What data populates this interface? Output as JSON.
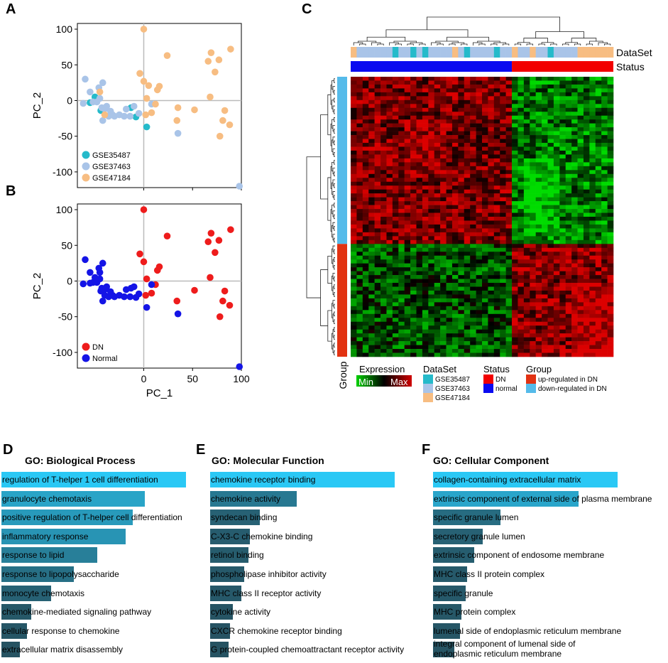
{
  "panels": {
    "A": "A",
    "B": "B",
    "C": "C",
    "D": "D",
    "E": "E",
    "F": "F"
  },
  "chart_data": [
    {
      "id": "A",
      "type": "scatter",
      "xlabel": "",
      "ylabel": "PC_2",
      "xlim": [
        -68,
        100
      ],
      "ylim": [
        -122,
        108
      ],
      "xticks": [
        0,
        50,
        100
      ],
      "yticks": [
        -100,
        -50,
        0,
        50,
        100
      ],
      "xticklabels": [
        "",
        "",
        ""
      ],
      "yticklabels": [
        "-100",
        "-50",
        "0",
        "50",
        "100"
      ],
      "legend": "bottom-left",
      "series": [
        {
          "name": "GSE35487",
          "color": "#25BACA",
          "points": [
            [
              -55,
              -3
            ],
            [
              -50,
              5
            ],
            [
              -44,
              -14
            ],
            [
              -13,
              -10
            ],
            [
              -8,
              -23
            ],
            [
              3,
              -37
            ]
          ]
        },
        {
          "name": "GSE37463",
          "color": "#A9C4E8",
          "points": [
            [
              -62,
              -4
            ],
            [
              -60,
              30
            ],
            [
              -55,
              12
            ],
            [
              -52,
              -2
            ],
            [
              -48,
              -2
            ],
            [
              -46,
              18
            ],
            [
              -45,
              3
            ],
            [
              -43,
              -10
            ],
            [
              -42,
              -28
            ],
            [
              -42,
              25
            ],
            [
              -40,
              -12
            ],
            [
              -38,
              -8
            ],
            [
              -36,
              -22
            ],
            [
              -34,
              -15
            ],
            [
              -32,
              -20
            ],
            [
              -30,
              -22
            ],
            [
              -25,
              -20
            ],
            [
              -20,
              -22
            ],
            [
              -18,
              -12
            ],
            [
              -14,
              -22
            ],
            [
              -10,
              -8
            ],
            [
              -5,
              -18
            ],
            [
              8,
              -5
            ],
            [
              35,
              -46
            ],
            [
              98,
              -120
            ]
          ]
        },
        {
          "name": "GSE47184",
          "color": "#F7BD82",
          "points": [
            [
              -45,
              12
            ],
            [
              -40,
              -20
            ],
            [
              -4,
              38
            ],
            [
              0,
              27
            ],
            [
              0,
              100
            ],
            [
              2,
              -20
            ],
            [
              3,
              3
            ],
            [
              5,
              21
            ],
            [
              8,
              -17
            ],
            [
              12,
              -5
            ],
            [
              14,
              15
            ],
            [
              16,
              20
            ],
            [
              24,
              63
            ],
            [
              34,
              -28
            ],
            [
              35,
              -10
            ],
            [
              52,
              -13
            ],
            [
              66,
              55
            ],
            [
              68,
              5
            ],
            [
              69,
              67
            ],
            [
              73,
              40
            ],
            [
              77,
              57
            ],
            [
              78,
              -50
            ],
            [
              81,
              -28
            ],
            [
              83,
              -14
            ],
            [
              88,
              -34
            ],
            [
              89,
              72
            ]
          ]
        }
      ]
    },
    {
      "id": "B",
      "type": "scatter",
      "xlabel": "PC_1",
      "ylabel": "PC_2",
      "xlim": [
        -68,
        100
      ],
      "ylim": [
        -122,
        108
      ],
      "xticks": [
        0,
        50,
        100
      ],
      "yticks": [
        -100,
        -50,
        0,
        50,
        100
      ],
      "xticklabels": [
        "0",
        "50",
        "100"
      ],
      "yticklabels": [
        "-100",
        "-50",
        "0",
        "50",
        "100"
      ],
      "legend": "bottom-left",
      "series": [
        {
          "name": "DN",
          "color": "#EE1C1C",
          "points": [
            [
              -4,
              38
            ],
            [
              0,
              27
            ],
            [
              0,
              100
            ],
            [
              2,
              -20
            ],
            [
              3,
              3
            ],
            [
              8,
              -17
            ],
            [
              12,
              -5
            ],
            [
              14,
              15
            ],
            [
              16,
              20
            ],
            [
              24,
              63
            ],
            [
              34,
              -28
            ],
            [
              52,
              -13
            ],
            [
              66,
              55
            ],
            [
              68,
              5
            ],
            [
              69,
              67
            ],
            [
              73,
              40
            ],
            [
              77,
              57
            ],
            [
              78,
              -50
            ],
            [
              81,
              -28
            ],
            [
              83,
              -14
            ],
            [
              88,
              -34
            ],
            [
              89,
              72
            ]
          ]
        },
        {
          "name": "Normal",
          "color": "#1414E6",
          "points": [
            [
              -62,
              -4
            ],
            [
              -60,
              30
            ],
            [
              -55,
              -3
            ],
            [
              -55,
              12
            ],
            [
              -52,
              -2
            ],
            [
              -50,
              5
            ],
            [
              -48,
              -2
            ],
            [
              -46,
              18
            ],
            [
              -45,
              3
            ],
            [
              -45,
              12
            ],
            [
              -44,
              -14
            ],
            [
              -43,
              -10
            ],
            [
              -42,
              -28
            ],
            [
              -42,
              25
            ],
            [
              -40,
              -12
            ],
            [
              -40,
              -20
            ],
            [
              -38,
              -8
            ],
            [
              -36,
              -22
            ],
            [
              -34,
              -15
            ],
            [
              -32,
              -20
            ],
            [
              -30,
              -22
            ],
            [
              -25,
              -20
            ],
            [
              -20,
              -22
            ],
            [
              -18,
              -12
            ],
            [
              -14,
              -22
            ],
            [
              -13,
              -10
            ],
            [
              -10,
              -8
            ],
            [
              -8,
              -23
            ],
            [
              -5,
              -18
            ],
            [
              3,
              -37
            ],
            [
              8,
              -5
            ],
            [
              35,
              -46
            ],
            [
              98,
              -120
            ]
          ]
        }
      ]
    },
    {
      "id": "C",
      "type": "heatmap",
      "row_tracks": [
        "DataSet",
        "Status"
      ],
      "column_group_label": "Group",
      "colors": {
        "min": "#00D000",
        "mid": "#000000",
        "max": "#D00000",
        "GSE35487": "#25BACA",
        "GSE37463": "#A9C4E8",
        "GSE47184": "#F7BD82",
        "DN": "#F20000",
        "normal": "#0A0AF0",
        "up": "#E23212",
        "down": "#55BBEA"
      },
      "n_columns": 44,
      "n_rows": 72,
      "normal_columns": 27,
      "up_rows": 29,
      "dataset_track": [
        "GSE47184",
        "GSE37463",
        "GSE37463",
        "GSE37463",
        "GSE37463",
        "GSE37463",
        "GSE37463",
        "GSE35487",
        "GSE37463",
        "GSE37463",
        "GSE35487",
        "GSE37463",
        "GSE35487",
        "GSE37463",
        "GSE37463",
        "GSE37463",
        "GSE37463",
        "GSE47184",
        "GSE37463",
        "GSE35487",
        "GSE37463",
        "GSE37463",
        "GSE37463",
        "GSE37463",
        "GSE35487",
        "GSE37463",
        "GSE37463",
        "GSE47184",
        "GSE37463",
        "GSE37463",
        "GSE47184",
        "GSE37463",
        "GSE37463",
        "GSE35487",
        "GSE37463",
        "GSE37463",
        "GSE37463",
        "GSE37463",
        "GSE47184",
        "GSE47184",
        "GSE47184",
        "GSE47184",
        "GSE47184",
        "GSE47184"
      ],
      "legend": {
        "expression_title": "Expression",
        "min_label": "Min",
        "max_label": "Max",
        "dataset_title": "DataSet",
        "dataset_items": [
          "GSE35487",
          "GSE37463",
          "GSE47184"
        ],
        "status_title": "Status",
        "status_items": [
          "DN",
          "normal"
        ],
        "group_title": "Group",
        "group_items": [
          "up-regulated in DN",
          "down-regulated in DN"
        ]
      }
    },
    {
      "id": "D",
      "type": "bar",
      "title": "GO: Biological Process",
      "categories": [
        "regulation of T-helper 1 cell differentiation",
        "granulocyte chemotaxis",
        "positive regulation of T-helper cell differentiation",
        "inflammatory response",
        "response to lipid",
        "response to lipopolysaccharide",
        "monocyte chemotaxis",
        "chemokine-mediated signaling pathway",
        "cellular response to chemokine",
        "extracellular matrix disassembly"
      ],
      "values": [
        260,
        202,
        185,
        175,
        135,
        102,
        70,
        42,
        36,
        26
      ]
    },
    {
      "id": "E",
      "type": "bar",
      "title": "GO: Molecular Function",
      "categories": [
        "chemokine receptor binding",
        "chemokine activity",
        "syndecan binding",
        "C-X3-C chemokine binding",
        "retinol binding",
        "phospholipase inhibitor activity",
        "MHC class II receptor activity",
        "cytokine activity",
        "CXCR chemokine receptor binding",
        "G protein-coupled chemoattractant receptor activity"
      ],
      "values": [
        260,
        122,
        70,
        56,
        54,
        48,
        44,
        32,
        28,
        26
      ]
    },
    {
      "id": "F",
      "type": "bar",
      "title": "GO: Cellular Component",
      "categories": [
        "collagen-containing extracellular matrix",
        "extrinsic component of external side of plasma membrane",
        "specific granule lumen",
        "secretory granule lumen",
        "extrinsic component of endosome membrane",
        "MHC class II protein complex",
        "specific granule",
        "MHC protein complex",
        "lumenal side of endoplasmic reticulum membrane",
        "integral component of lumenal side of endoplasmic reticulum membrane"
      ],
      "values": [
        260,
        205,
        95,
        70,
        58,
        48,
        46,
        40,
        38,
        30
      ]
    }
  ]
}
